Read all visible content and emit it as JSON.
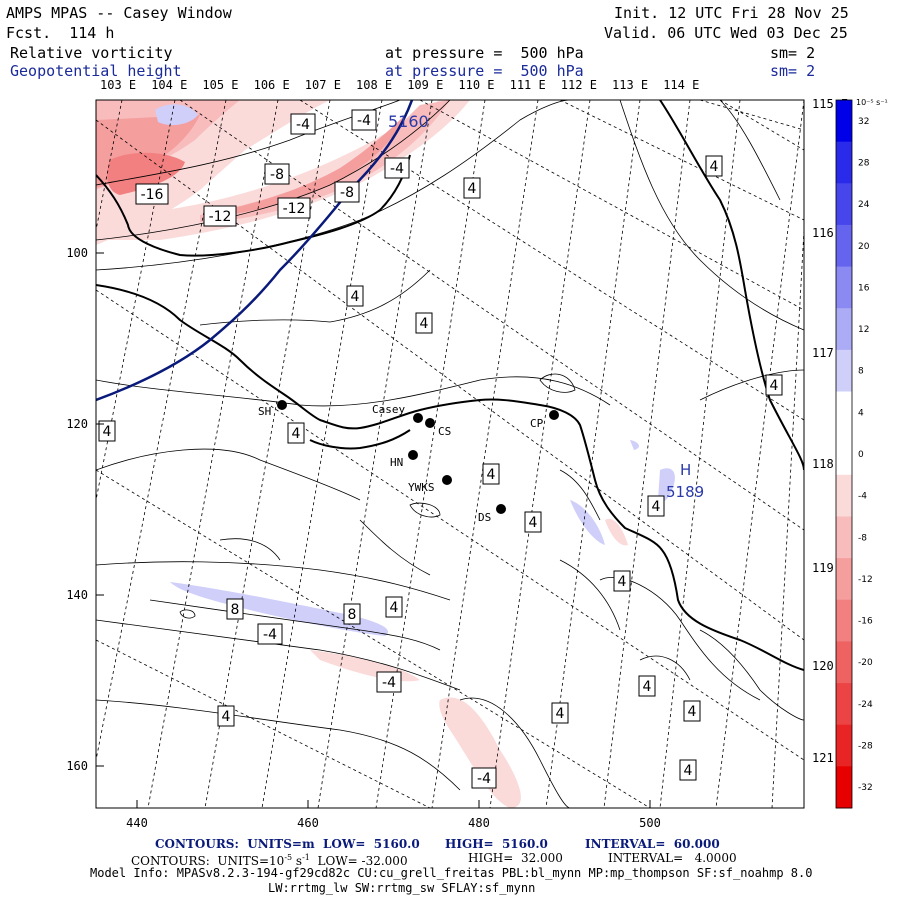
{
  "header": {
    "title": "AMPS MPAS -- Casey Window",
    "init": "Init. 12 UTC Fri 28 Nov 25",
    "fcst": "Fcst.  114 h",
    "valid": "Valid. 06 UTC Wed 03 Dec 25",
    "field1_name": "Relative vorticity",
    "field1_level": "at pressure =  500 hPa",
    "field1_sm": "sm= 2",
    "field2_name": "Geopotential height",
    "field2_level": "at pressure =  500 hPa",
    "field2_sm": "sm= 2"
  },
  "lon_labels_top": [
    "103 E",
    "104 E",
    "105 E",
    "106 E",
    "107 E",
    "108 E",
    "109 E",
    "110 E",
    "111 E",
    "112 E",
    "113 E",
    "114 E"
  ],
  "lon_labels_right": [
    "115 E",
    "116 E",
    "117 E",
    "118 E",
    "119 E",
    "120 E",
    "121 E"
  ],
  "x_axis_ticks": [
    "440",
    "460",
    "480",
    "500"
  ],
  "y_axis_ticks": [
    "100",
    "120",
    "140",
    "160"
  ],
  "colorbar": {
    "unit": "10⁻⁵ s⁻¹",
    "levels": [
      "32",
      "28",
      "24",
      "20",
      "16",
      "12",
      "8",
      "4",
      "0",
      "-4",
      "-8",
      "-12",
      "-16",
      "-20",
      "-24",
      "-28",
      "-32"
    ],
    "colors": [
      "#0000e8",
      "#2a2aea",
      "#4646ec",
      "#6464ee",
      "#8a8af2",
      "#acacf6",
      "#cfcffa",
      "#ffffff",
      "#ffffff",
      "#fbdada",
      "#f8bcbc",
      "#f59e9e",
      "#f28080",
      "#ef6262",
      "#ec4444",
      "#e92424",
      "#e60000"
    ]
  },
  "stations": [
    {
      "id": "SH",
      "label": "SH"
    },
    {
      "id": "Casey",
      "label": "Casey"
    },
    {
      "id": "CS",
      "label": "CS"
    },
    {
      "id": "HN",
      "label": "HN"
    },
    {
      "id": "YWKS",
      "label": "YWKS"
    },
    {
      "id": "DS",
      "label": "DS"
    },
    {
      "id": "CP",
      "label": "CP"
    }
  ],
  "contour_labels": {
    "vort": [
      "-4",
      "-4",
      "-8",
      "-4",
      "-16",
      "-8",
      "-12",
      "-12",
      "4",
      "4",
      "4",
      "4",
      "4",
      "4",
      "4",
      "4",
      "4",
      "4",
      "8",
      "4",
      "8",
      "4",
      "-4",
      "-4",
      "4",
      "4",
      "4",
      "4",
      "4",
      "-4"
    ],
    "height": [
      "5160",
      "5189"
    ],
    "high_marker": "H"
  },
  "footer": {
    "line1_a": "CONTOURS:  UNITS=m  LOW=  5160.0",
    "line1_b": "HIGH=  5160.0",
    "line1_c": "INTERVAL=  60.000",
    "line2_a": "CONTOURS:  UNITS=10",
    "line2_exp": "-5",
    "line2_b": " s",
    "line2_exp2": "-1",
    "line2_c": "  LOW= -32.000",
    "line2_d": "HIGH=  32.000",
    "line2_e": "INTERVAL=   4.0000",
    "line3": "Model Info: MPASv8.2.3-194-gf29cd82c CU:cu_grell_freitas PBL:bl_mynn MP:mp_thompson SF:sf_noahmp 8.0",
    "line4": "LW:rrtmg_lw SW:rrtmg_sw SFLAY:sf_mynn"
  },
  "colors": {
    "height_contour": "#0a1a7a",
    "coast": "#000000"
  }
}
